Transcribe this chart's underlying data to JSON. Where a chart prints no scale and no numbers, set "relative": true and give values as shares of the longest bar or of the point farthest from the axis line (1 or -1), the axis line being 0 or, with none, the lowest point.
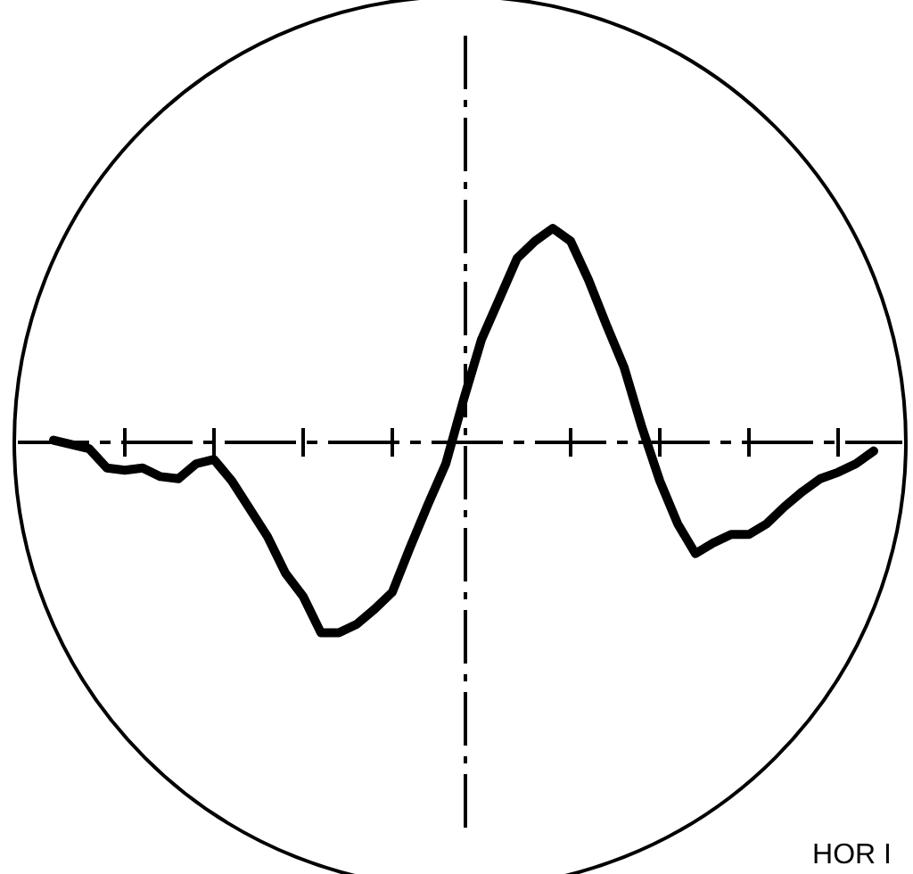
{
  "chart_data": {
    "type": "line",
    "relative": true,
    "categories": [
      null,
      null,
      null,
      null,
      null,
      null,
      null,
      null,
      null,
      null,
      null,
      null,
      null,
      null,
      null,
      null,
      null,
      null,
      null,
      null,
      null,
      null,
      null,
      null,
      null,
      null,
      null,
      null,
      null,
      null,
      null,
      null,
      null,
      null,
      null,
      null,
      null,
      null,
      null,
      null,
      null,
      null,
      null,
      null,
      null,
      null,
      null
    ],
    "series": [
      {
        "color": "#000000",
        "values": [
          0.01,
          -0.01,
          -0.03,
          -0.12,
          -0.13,
          -0.12,
          -0.16,
          -0.17,
          -0.1,
          -0.08,
          -0.18,
          -0.31,
          -0.44,
          -0.61,
          -0.72,
          -0.89,
          -0.89,
          -0.85,
          -0.78,
          -0.7,
          -0.49,
          -0.29,
          -0.1,
          0.2,
          0.48,
          0.67,
          0.86,
          0.94,
          1.0,
          0.94,
          0.76,
          0.55,
          0.35,
          0.07,
          -0.18,
          -0.38,
          -0.52,
          -0.47,
          -0.43,
          -0.43,
          -0.38,
          -0.3,
          -0.23,
          -0.17,
          -0.14,
          -0.1,
          -0.04
        ]
      }
    ],
    "line_style": "solid",
    "marker": "none",
    "grid": false,
    "annotations": [
      "HOR I"
    ]
  }
}
